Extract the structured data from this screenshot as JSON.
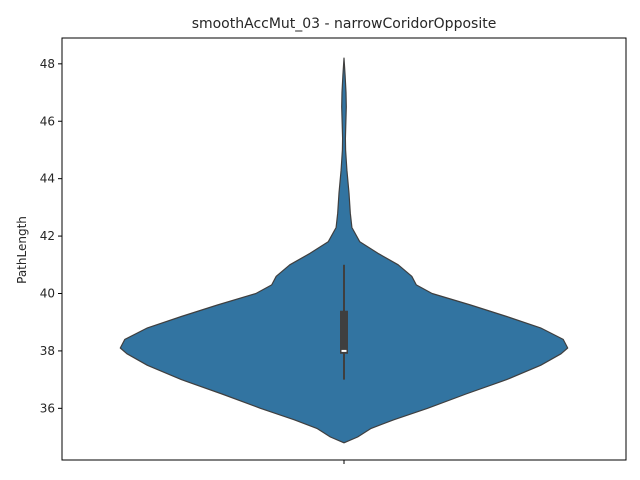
{
  "chart_data": {
    "type": "violin",
    "title": "smoothAccMut_03 - narrowCoridorOpposite",
    "xlabel": "",
    "ylabel": "PathLength",
    "x_tick_labels": [
      ""
    ],
    "y_ticks": [
      36,
      38,
      40,
      42,
      44,
      46,
      48
    ],
    "ylim": [
      34.2,
      48.9
    ],
    "grid": false,
    "colors": {
      "fill": "#3274a1",
      "edge": "#3f3f3f",
      "box": "#3f3f3f",
      "median": "#ffffff"
    },
    "violin": {
      "density_profile": [
        [
          34.8,
          0.0
        ],
        [
          35.0,
          0.06
        ],
        [
          35.3,
          0.12
        ],
        [
          35.6,
          0.22
        ],
        [
          36.0,
          0.37
        ],
        [
          36.5,
          0.54
        ],
        [
          37.0,
          0.72
        ],
        [
          37.5,
          0.87
        ],
        [
          37.9,
          0.96
        ],
        [
          38.1,
          0.99
        ],
        [
          38.4,
          0.97
        ],
        [
          38.8,
          0.87
        ],
        [
          39.2,
          0.72
        ],
        [
          39.6,
          0.56
        ],
        [
          40.0,
          0.39
        ],
        [
          40.3,
          0.32
        ],
        [
          40.6,
          0.3
        ],
        [
          41.0,
          0.24
        ],
        [
          41.4,
          0.15
        ],
        [
          41.8,
          0.07
        ],
        [
          42.3,
          0.035
        ],
        [
          42.8,
          0.028
        ],
        [
          43.5,
          0.022
        ],
        [
          44.3,
          0.013
        ],
        [
          45.0,
          0.007
        ],
        [
          45.4,
          0.006
        ],
        [
          45.9,
          0.008
        ],
        [
          46.5,
          0.01
        ],
        [
          47.0,
          0.009
        ],
        [
          47.6,
          0.005
        ],
        [
          48.2,
          0.0
        ]
      ],
      "box": {
        "q1": 37.9,
        "median": 38.0,
        "q3": 39.4,
        "whisker_low": 37.0,
        "whisker_high": 41.0
      }
    }
  }
}
